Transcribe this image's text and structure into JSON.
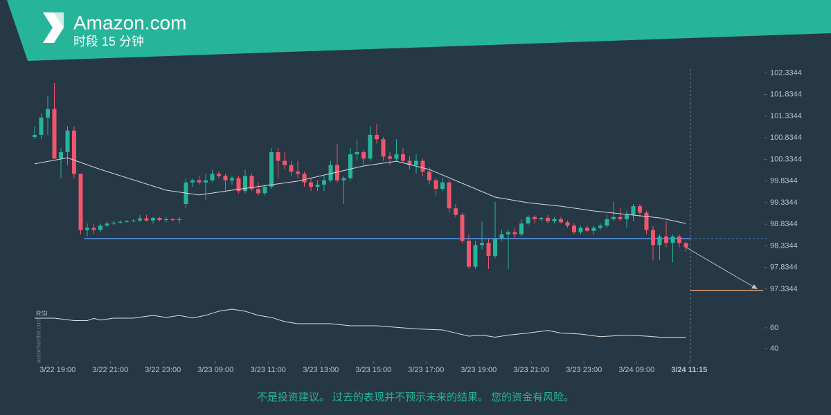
{
  "chart_data": {
    "type": "candlestick",
    "title": "Amazon.com",
    "subtitle": "时段 15 分钟",
    "watermark": "autochartist.com",
    "disclaimer": "不是投资建议。 过去的表现并不预示未来的结果。 您的资金有风险。",
    "up_color": "#26b59a",
    "down_color": "#f0566b",
    "open": [
      100.85,
      100.9,
      101.3,
      101.5,
      100.35,
      100.5,
      101.0,
      100.0,
      98.7,
      98.75,
      98.7,
      98.8,
      98.85,
      98.87,
      98.89,
      98.9,
      98.92,
      98.97,
      98.92,
      98.98,
      98.93,
      98.95,
      98.93,
      99.3,
      99.8,
      99.85,
      99.8,
      99.85,
      100.0,
      99.95,
      99.85,
      99.9,
      99.6,
      99.95,
      99.65,
      99.55,
      99.7,
      100.5,
      100.3,
      100.2,
      100.05,
      100.0,
      99.8,
      99.7,
      99.75,
      99.85,
      100.2,
      99.85,
      99.9,
      100.45,
      100.5,
      100.35,
      100.9,
      100.8,
      100.4,
      100.35,
      100.45,
      100.3,
      100.2,
      100.3,
      100.05,
      99.85,
      99.65,
      99.8,
      99.2,
      99.05,
      98.45,
      97.85,
      98.35,
      98.4,
      98.1,
      98.5,
      98.6,
      98.65,
      98.6,
      98.85,
      99.0,
      98.95,
      98.98,
      98.9,
      98.95,
      98.88,
      98.8,
      98.65,
      98.75,
      98.68,
      98.75,
      98.8,
      98.95,
      99.0,
      98.95,
      99.05,
      99.25,
      99.1,
      98.7,
      98.35,
      98.55,
      98.4,
      98.55,
      98.4
    ],
    "high": [
      101.1,
      101.4,
      101.8,
      102.1,
      100.6,
      101.1,
      101.1,
      100.0,
      98.85,
      98.85,
      98.85,
      98.9,
      98.9,
      98.92,
      98.93,
      98.95,
      99.05,
      99.05,
      99.0,
      99.0,
      99.0,
      98.98,
      99.0,
      99.9,
      99.9,
      99.95,
      100.0,
      100.1,
      100.05,
      100.0,
      99.95,
      99.95,
      100.1,
      100.0,
      99.8,
      99.75,
      100.6,
      100.6,
      100.5,
      100.3,
      100.3,
      100.05,
      99.9,
      99.85,
      99.95,
      100.3,
      100.7,
      99.95,
      100.6,
      100.8,
      100.55,
      101.1,
      101.15,
      100.85,
      100.5,
      100.8,
      100.6,
      100.4,
      100.45,
      100.35,
      100.15,
      99.9,
      99.9,
      99.85,
      99.3,
      99.1,
      98.6,
      98.45,
      98.9,
      98.5,
      99.35,
      98.7,
      98.7,
      98.75,
      98.95,
      99.05,
      99.05,
      99.0,
      99.05,
      99.0,
      99.0,
      98.92,
      98.85,
      98.8,
      98.8,
      98.8,
      98.85,
      99.05,
      99.35,
      99.2,
      99.15,
      99.3,
      99.3,
      99.15,
      98.8,
      98.6,
      98.9,
      98.6,
      98.6,
      98.45
    ],
    "low": [
      100.8,
      100.8,
      100.9,
      100.4,
      99.9,
      100.2,
      99.9,
      98.6,
      98.55,
      98.6,
      98.65,
      98.75,
      98.82,
      98.85,
      98.87,
      98.88,
      98.88,
      98.9,
      98.85,
      98.9,
      98.88,
      98.9,
      98.85,
      99.2,
      99.7,
      99.75,
      99.4,
      99.8,
      99.9,
      99.6,
      99.75,
      99.55,
      99.55,
      99.6,
      99.5,
      99.5,
      99.65,
      99.9,
      100.1,
      99.95,
      99.9,
      99.7,
      99.6,
      99.6,
      99.6,
      99.8,
      99.8,
      99.3,
      99.85,
      100.3,
      100.2,
      100.3,
      100.7,
      100.3,
      100.2,
      100.3,
      100.25,
      100.1,
      100.0,
      99.95,
      99.75,
      99.5,
      99.6,
      99.1,
      99.0,
      98.4,
      97.8,
      97.8,
      98.25,
      97.8,
      98.05,
      98.45,
      97.8,
      98.5,
      98.55,
      98.8,
      98.85,
      98.9,
      98.85,
      98.85,
      98.85,
      98.75,
      98.6,
      98.6,
      98.65,
      98.6,
      98.7,
      98.75,
      98.9,
      98.9,
      98.75,
      98.9,
      99.0,
      98.6,
      98.0,
      98.0,
      98.3,
      97.95,
      98.3,
      98.2
    ],
    "close": [
      100.9,
      101.3,
      101.5,
      100.35,
      100.5,
      101.0,
      100.0,
      98.7,
      98.75,
      98.7,
      98.8,
      98.85,
      98.87,
      98.89,
      98.9,
      98.92,
      98.97,
      98.92,
      98.98,
      98.93,
      98.95,
      98.93,
      98.95,
      99.8,
      99.85,
      99.8,
      99.85,
      100.0,
      99.95,
      99.85,
      99.9,
      99.6,
      99.95,
      99.65,
      99.55,
      99.7,
      100.5,
      100.3,
      100.2,
      100.05,
      100.0,
      99.8,
      99.7,
      99.75,
      99.85,
      100.2,
      99.85,
      99.9,
      100.45,
      100.5,
      100.35,
      100.9,
      100.8,
      100.4,
      100.35,
      100.45,
      100.3,
      100.2,
      100.3,
      100.05,
      99.85,
      99.65,
      99.8,
      99.2,
      99.05,
      98.45,
      97.85,
      98.35,
      98.4,
      98.1,
      98.5,
      98.6,
      98.65,
      98.6,
      98.85,
      99.0,
      98.95,
      98.98,
      98.9,
      98.95,
      98.88,
      98.8,
      98.65,
      98.75,
      98.68,
      98.75,
      98.8,
      98.95,
      99.0,
      98.95,
      99.05,
      99.25,
      99.1,
      98.7,
      98.35,
      98.55,
      98.4,
      98.55,
      98.4,
      98.3
    ],
    "ma": {
      "color": "#d8d8d8",
      "x": [
        0,
        5,
        10,
        20,
        25,
        30,
        40,
        50,
        55,
        60,
        65,
        70,
        75,
        80,
        85,
        90,
        95,
        99
      ],
      "values": [
        100.23,
        100.37,
        100.1,
        99.62,
        99.51,
        99.62,
        99.83,
        100.18,
        100.29,
        100.1,
        99.78,
        99.46,
        99.33,
        99.25,
        99.14,
        99.06,
        98.98,
        98.85
      ]
    },
    "support": 98.5,
    "support_color": "#4a7fc8",
    "target": 97.3,
    "target_color": "#e8a070",
    "ylim": [
      96.98,
      102.58
    ],
    "yticks": [
      102.3344,
      101.8344,
      101.3344,
      100.8344,
      100.3344,
      99.8344,
      99.3344,
      98.8344,
      98.3344,
      97.8344,
      97.3344
    ],
    "xticks": [
      {
        "value": 3.5,
        "label": "3/22 19:00"
      },
      {
        "value": 11.5,
        "label": "3/22 21:00"
      },
      {
        "value": 19.5,
        "label": "3/22 23:00"
      },
      {
        "value": 27.5,
        "label": "3/23 09:00"
      },
      {
        "value": 35.5,
        "label": "3/23 11:00"
      },
      {
        "value": 43.5,
        "label": "3/23 13:00"
      },
      {
        "value": 51.5,
        "label": "3/23 15:00"
      },
      {
        "value": 59.5,
        "label": "3/23 17:00"
      },
      {
        "value": 67.5,
        "label": "3/23 19:00"
      },
      {
        "value": 75.5,
        "label": "3/23 21:00"
      },
      {
        "value": 83.5,
        "label": "3/23 23:00"
      },
      {
        "value": 91.5,
        "label": "3/24 09:00"
      },
      {
        "value": 99.5,
        "label": "3/24 11:15"
      }
    ],
    "rsi": {
      "label": "RSI",
      "color": "#e0e0e0",
      "ylim": [
        29.3,
        79.3
      ],
      "yticks": [
        60,
        40
      ],
      "x": [
        0,
        3,
        6,
        8,
        9,
        10,
        12,
        15,
        18,
        20,
        22,
        24,
        26,
        28,
        30,
        32,
        34,
        36,
        38,
        40,
        45,
        48,
        52,
        55,
        58,
        62,
        66,
        68,
        70,
        72,
        75,
        78,
        80,
        83,
        86,
        90,
        93,
        95,
        99
      ],
      "values": [
        69.3,
        69.3,
        67,
        67,
        69,
        67.5,
        69.3,
        69.3,
        72,
        70,
        72,
        69.5,
        72,
        76,
        78,
        76,
        72,
        70,
        66,
        64,
        64,
        62,
        62,
        60.5,
        59,
        58,
        52,
        53,
        51,
        53,
        55,
        57.5,
        55,
        54,
        51.5,
        53,
        52,
        51,
        51
      ]
    }
  }
}
